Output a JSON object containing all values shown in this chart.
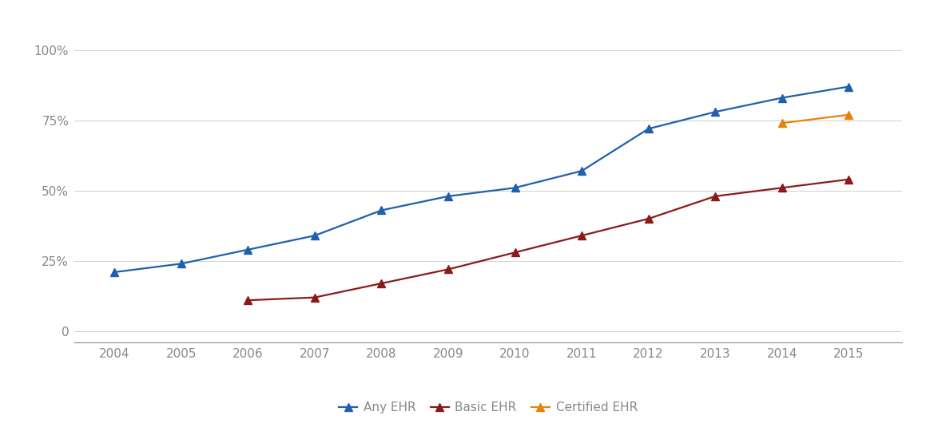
{
  "years": [
    2004,
    2005,
    2006,
    2007,
    2008,
    2009,
    2010,
    2011,
    2012,
    2013,
    2014,
    2015
  ],
  "any_ehr": [
    0.21,
    0.24,
    0.29,
    0.34,
    0.43,
    0.48,
    0.51,
    0.57,
    0.72,
    0.78,
    0.83,
    0.87
  ],
  "basic_ehr": [
    null,
    null,
    0.11,
    0.12,
    0.17,
    0.22,
    0.28,
    0.34,
    0.4,
    0.48,
    0.51,
    0.54
  ],
  "certified_ehr": [
    null,
    null,
    null,
    null,
    null,
    null,
    null,
    null,
    null,
    null,
    0.74,
    0.77
  ],
  "any_ehr_color": "#1F5FAD",
  "basic_ehr_color": "#8B1A1A",
  "certified_ehr_color": "#E8820C",
  "line_width": 1.6,
  "marker": "^",
  "marker_size": 7,
  "yticks": [
    0.0,
    0.25,
    0.5,
    0.75,
    1.0
  ],
  "ytick_labels": [
    "0",
    "25%",
    "50%",
    "75%",
    "100%"
  ],
  "ylim": [
    -0.04,
    1.1
  ],
  "xlim": [
    2003.4,
    2015.8
  ],
  "legend_labels": [
    "Any EHR",
    "Basic EHR",
    "Certified EHR"
  ],
  "background_color": "#FFFFFF",
  "grid_color": "#D0D0D0",
  "tick_color": "#888888",
  "font_size_ticks": 11,
  "font_size_legend": 11
}
